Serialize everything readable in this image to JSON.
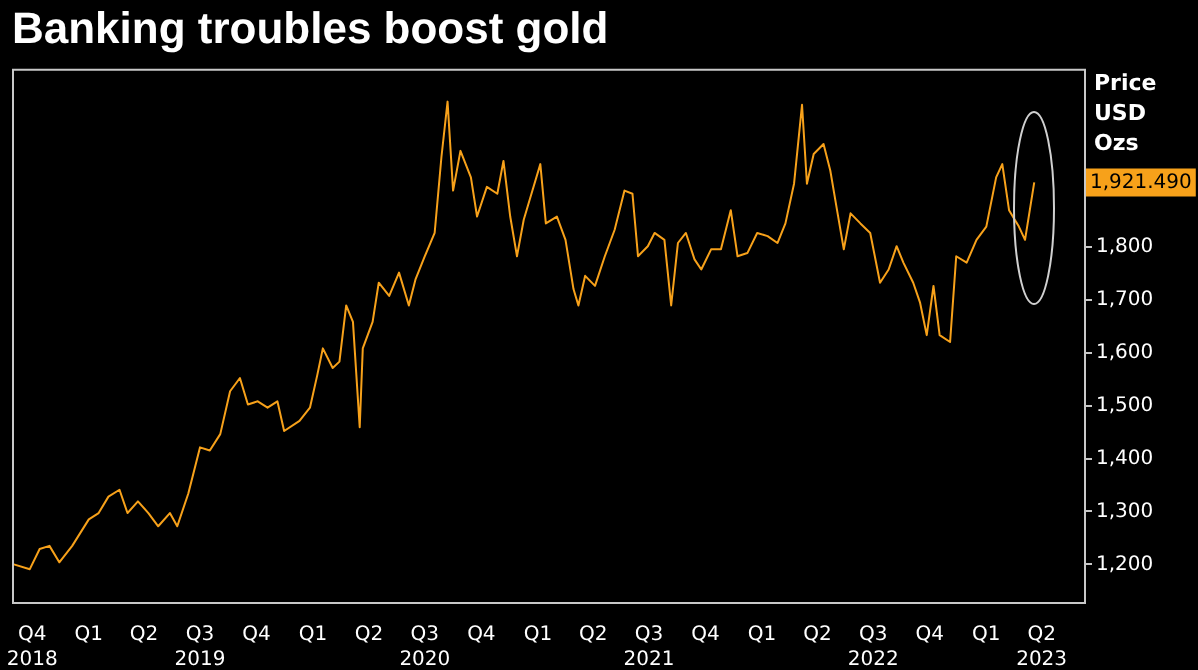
{
  "chart_data": {
    "type": "line",
    "title": "Banking troubles boost gold",
    "ylabel": "Price USD Ozs",
    "x": [
      "2018-09-01",
      "2018-09-27",
      "2018-10-13",
      "2018-10-29",
      "2018-11-14",
      "2018-12-05",
      "2019-01-01",
      "2019-01-17",
      "2019-02-02",
      "2019-02-20",
      "2019-03-05",
      "2019-03-22",
      "2019-04-08",
      "2019-04-24",
      "2019-05-13",
      "2019-05-25",
      "2019-06-12",
      "2019-07-01",
      "2019-07-17",
      "2019-08-03",
      "2019-08-19",
      "2019-09-04",
      "2019-09-17",
      "2019-10-03",
      "2019-10-19",
      "2019-11-04",
      "2019-11-15",
      "2019-12-10",
      "2019-12-27",
      "2020-01-08",
      "2020-01-17",
      "2020-02-02",
      "2020-02-13",
      "2020-02-24",
      "2020-03-06",
      "2020-03-17",
      "2020-03-22",
      "2020-04-07",
      "2020-04-17",
      "2020-05-04",
      "2020-05-20",
      "2020-06-05",
      "2020-06-16",
      "2020-07-01",
      "2020-07-17",
      "2020-07-28",
      "2020-08-07",
      "2020-08-16",
      "2020-08-28",
      "2020-09-14",
      "2020-09-24",
      "2020-10-10",
      "2020-10-27",
      "2020-11-06",
      "2020-11-17",
      "2020-11-28",
      "2020-12-09",
      "2020-12-20",
      "2021-01-05",
      "2021-01-14",
      "2021-02-01",
      "2021-02-15",
      "2021-02-28",
      "2021-03-08",
      "2021-03-19",
      "2021-04-04",
      "2021-04-20",
      "2021-05-06",
      "2021-05-22",
      "2021-06-04",
      "2021-06-13",
      "2021-06-29",
      "2021-07-10",
      "2021-07-26",
      "2021-08-06",
      "2021-08-17",
      "2021-08-30",
      "2021-09-13",
      "2021-09-24",
      "2021-10-10",
      "2021-10-26",
      "2021-11-11",
      "2021-11-22",
      "2021-12-08",
      "2021-12-24",
      "2022-01-10",
      "2022-01-26",
      "2022-02-08",
      "2022-02-22",
      "2022-03-07",
      "2022-03-15",
      "2022-03-26",
      "2022-04-11",
      "2022-04-22",
      "2022-05-03",
      "2022-05-14",
      "2022-05-25",
      "2022-06-10",
      "2022-06-26",
      "2022-07-12",
      "2022-07-26",
      "2022-08-08",
      "2022-08-19",
      "2022-09-04",
      "2022-09-15",
      "2022-09-26",
      "2022-10-07",
      "2022-10-17",
      "2022-11-03",
      "2022-11-13",
      "2022-11-30",
      "2022-12-16",
      "2023-01-01",
      "2023-01-17",
      "2023-01-27",
      "2023-02-07",
      "2023-02-23",
      "2023-03-05",
      "2023-03-20"
    ],
    "series": [
      {
        "color": "#f7a11a",
        "values": [
          1200,
          1191,
          1229,
          1235,
          1204,
          1235,
          1285,
          1297,
          1328,
          1341,
          1297,
          1319,
          1297,
          1272,
          1297,
          1272,
          1334,
          1421,
          1415,
          1446,
          1527,
          1552,
          1502,
          1508,
          1496,
          1508,
          1452,
          1471,
          1496,
          1558,
          1608,
          1571,
          1583,
          1689,
          1658,
          1459,
          1608,
          1658,
          1732,
          1707,
          1751,
          1689,
          1739,
          1782,
          1826,
          1969,
          2074,
          1906,
          1981,
          1931,
          1857,
          1913,
          1900,
          1962,
          1857,
          1782,
          1851,
          1894,
          1956,
          1844,
          1857,
          1813,
          1720,
          1689,
          1745,
          1726,
          1782,
          1832,
          1906,
          1900,
          1782,
          1801,
          1826,
          1813,
          1689,
          1807,
          1826,
          1776,
          1757,
          1795,
          1795,
          1869,
          1782,
          1788,
          1826,
          1820,
          1807,
          1844,
          1919,
          2068,
          1919,
          1975,
          1994,
          1944,
          1869,
          1795,
          1863,
          1844,
          1826,
          1732,
          1757,
          1801,
          1770,
          1732,
          1695,
          1633,
          1726,
          1633,
          1620,
          1782,
          1770,
          1813,
          1838,
          1931,
          1956,
          1869,
          1838,
          1813,
          1921.49
        ]
      }
    ],
    "xlim": [
      "2018-08-29",
      "2023-06-09"
    ],
    "xticks": [
      {
        "value": "2018-10-01",
        "label": "Q4\n2018"
      },
      {
        "value": "2019-01-01",
        "label": "Q1"
      },
      {
        "value": "2019-04-01",
        "label": "Q2"
      },
      {
        "value": "2019-07-01",
        "label": "Q3\n2019"
      },
      {
        "value": "2019-10-01",
        "label": "Q4"
      },
      {
        "value": "2020-01-01",
        "label": "Q1"
      },
      {
        "value": "2020-04-01",
        "label": "Q2"
      },
      {
        "value": "2020-07-01",
        "label": "Q3\n2020"
      },
      {
        "value": "2020-10-01",
        "label": "Q4"
      },
      {
        "value": "2021-01-01",
        "label": "Q1"
      },
      {
        "value": "2021-04-01",
        "label": "Q2"
      },
      {
        "value": "2021-07-01",
        "label": "Q3\n2021"
      },
      {
        "value": "2021-10-01",
        "label": "Q4"
      },
      {
        "value": "2022-01-01",
        "label": "Q1"
      },
      {
        "value": "2022-04-01",
        "label": "Q2"
      },
      {
        "value": "2022-07-01",
        "label": "Q3\n2022"
      },
      {
        "value": "2022-10-01",
        "label": "Q4"
      },
      {
        "value": "2023-01-01",
        "label": "Q1"
      },
      {
        "value": "2023-04-01",
        "label": "Q2\n2023"
      }
    ],
    "ylim": [
      1129,
      2136
    ],
    "yticks": [
      {
        "value": 1200,
        "label": "1,200"
      },
      {
        "value": 1300,
        "label": "1,300"
      },
      {
        "value": 1400,
        "label": "1,400"
      },
      {
        "value": 1500,
        "label": "1,500"
      },
      {
        "value": 1600,
        "label": "1,600"
      },
      {
        "value": 1700,
        "label": "1,700"
      },
      {
        "value": 1800,
        "label": "1,800"
      },
      {
        "value": 1900,
        "label": null
      }
    ],
    "annotations": [
      {
        "text": "1,921.490",
        "x": "2023-03-20",
        "y": 1921.49
      }
    ]
  }
}
